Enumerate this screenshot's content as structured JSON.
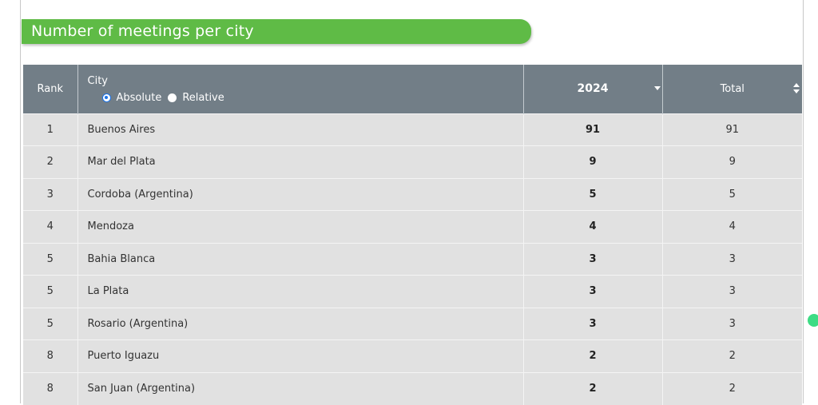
{
  "title": "Number of meetings per city",
  "colors": {
    "title_bar": "#5fbb46",
    "header_bg": "#727e87",
    "row_bg": "#e1e1e1",
    "radio_accent": "#1a73e8",
    "floating_dot": "#3ddc84"
  },
  "table": {
    "headers": {
      "rank": "Rank",
      "city": "City",
      "year": "2024",
      "total": "Total"
    },
    "toggle": {
      "options": [
        "Absolute",
        "Relative"
      ],
      "selected": "Absolute"
    },
    "sort": {
      "year": "sorted-descending",
      "total": "sortable"
    },
    "rows": [
      {
        "rank": "1",
        "city": "Buenos Aires",
        "year": "91",
        "total": "91"
      },
      {
        "rank": "2",
        "city": "Mar del Plata",
        "year": "9",
        "total": "9"
      },
      {
        "rank": "3",
        "city": "Cordoba (Argentina)",
        "year": "5",
        "total": "5"
      },
      {
        "rank": "4",
        "city": "Mendoza",
        "year": "4",
        "total": "4"
      },
      {
        "rank": "5",
        "city": "Bahia Blanca",
        "year": "3",
        "total": "3"
      },
      {
        "rank": "5",
        "city": "La Plata",
        "year": "3",
        "total": "3"
      },
      {
        "rank": "5",
        "city": "Rosario (Argentina)",
        "year": "3",
        "total": "3"
      },
      {
        "rank": "8",
        "city": "Puerto Iguazu",
        "year": "2",
        "total": "2"
      },
      {
        "rank": "8",
        "city": "San Juan (Argentina)",
        "year": "2",
        "total": "2"
      }
    ]
  }
}
